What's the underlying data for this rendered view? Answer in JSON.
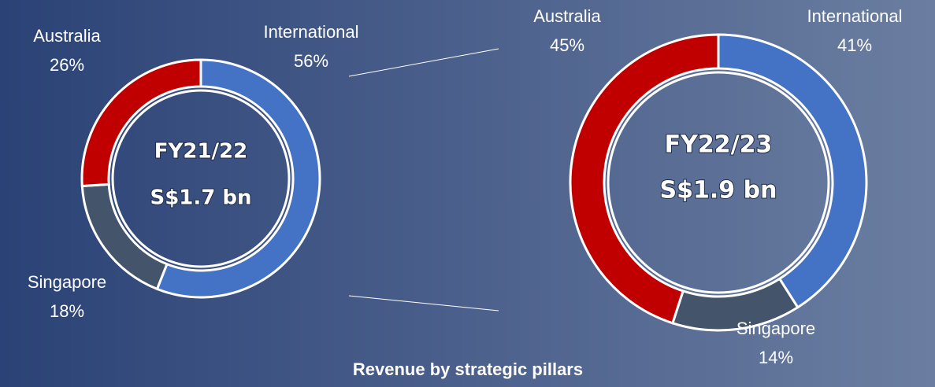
{
  "caption": "Revenue by strategic pillars",
  "chart_data": [
    {
      "type": "pie",
      "donut": true,
      "title": "FY21/22",
      "subtitle": "S$1.7 bn",
      "categories": [
        "International",
        "Singapore",
        "Australia"
      ],
      "values": [
        56,
        18,
        26
      ],
      "value_labels": [
        "56%",
        "18%",
        "26%"
      ],
      "colors": [
        "#4472c4",
        "#44546a",
        "#c00000"
      ]
    },
    {
      "type": "pie",
      "donut": true,
      "title": "FY22/23",
      "subtitle": "S$1.9 bn",
      "categories": [
        "International",
        "Singapore",
        "Australia"
      ],
      "values": [
        41,
        14,
        45
      ],
      "value_labels": [
        "41%",
        "14%",
        "45%"
      ],
      "colors": [
        "#4472c4",
        "#44546a",
        "#c00000"
      ]
    }
  ]
}
